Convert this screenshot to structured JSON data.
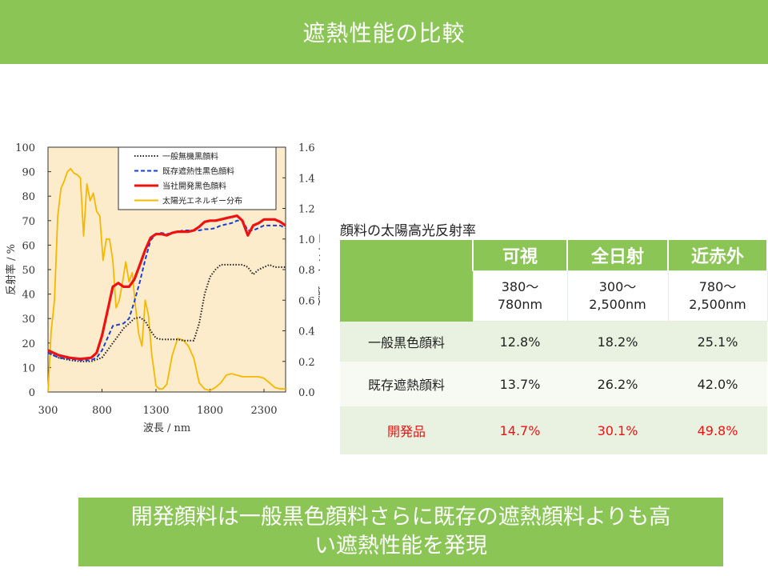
{
  "header": {
    "title": "遮熱性能の比較"
  },
  "chart_data": {
    "type": "line",
    "xlabel": "波長 / nm",
    "ylabel_left": "反射率 / %",
    "ylabel_right": "エネルギー強度",
    "xlim": [
      300,
      2500
    ],
    "xticks": [
      "300",
      "800",
      "1300",
      "1800",
      "2300"
    ],
    "ylim_left": [
      0,
      100
    ],
    "yticks_left": [
      "0",
      "10",
      "20",
      "30",
      "40",
      "50",
      "60",
      "70",
      "80",
      "90",
      "100"
    ],
    "ylim_right": [
      0,
      1.6
    ],
    "yticks_right": [
      "0.0",
      "0.2",
      "0.4",
      "0.6",
      "0.8",
      "1.0",
      "1.2",
      "1.4",
      "1.6"
    ],
    "grid": false,
    "legend_position": "top-right",
    "colors": {
      "plot_bg": "#fdeccb",
      "axis": "#333333"
    },
    "series": [
      {
        "name": "一般無機黒顔料",
        "axis": "left",
        "color": "#222222",
        "style": "dotted",
        "x": [
          300,
          400,
          500,
          600,
          700,
          800,
          850,
          900,
          950,
          1000,
          1050,
          1100,
          1150,
          1200,
          1250,
          1300,
          1350,
          1400,
          1450,
          1500,
          1550,
          1600,
          1650,
          1700,
          1750,
          1800,
          1850,
          1900,
          1950,
          2000,
          2050,
          2100,
          2150,
          2200,
          2250,
          2300,
          2350,
          2400,
          2450,
          2500
        ],
        "y": [
          16,
          14,
          13,
          12.5,
          12.5,
          14,
          17,
          20,
          23,
          26,
          28,
          30,
          30.5,
          29,
          25,
          22,
          21.5,
          21.5,
          21.5,
          21.5,
          21,
          21,
          21,
          28,
          40,
          47,
          50,
          52,
          52,
          52,
          52,
          52,
          51,
          48,
          50,
          51,
          52,
          51,
          51,
          51
        ]
      },
      {
        "name": "既存遮熱性黒色顔料",
        "axis": "left",
        "color": "#1a3fd6",
        "style": "dashed",
        "x": [
          300,
          400,
          500,
          600,
          700,
          750,
          800,
          850,
          900,
          950,
          1000,
          1050,
          1100,
          1150,
          1200,
          1250,
          1300,
          1350,
          1400,
          1450,
          1500,
          1550,
          1600,
          1650,
          1700,
          1750,
          1800,
          1850,
          1900,
          1950,
          2000,
          2050,
          2100,
          2150,
          2200,
          2250,
          2300,
          2350,
          2400,
          2450,
          2500
        ],
        "y": [
          16,
          14,
          13.5,
          13,
          13,
          14,
          17,
          22,
          27,
          27.5,
          28,
          30,
          37,
          45,
          54,
          62,
          64.5,
          65,
          64.5,
          65,
          65.5,
          66,
          66,
          66,
          66,
          66.5,
          66.5,
          67,
          68,
          68.5,
          69,
          70,
          70,
          66,
          66,
          67,
          68,
          68,
          68,
          68,
          67
        ]
      },
      {
        "name": "当社開発黒色顔料",
        "axis": "left",
        "color": "#ee1111",
        "style": "solid",
        "x": [
          300,
          400,
          500,
          600,
          700,
          750,
          800,
          850,
          900,
          950,
          1000,
          1050,
          1100,
          1150,
          1200,
          1250,
          1300,
          1350,
          1400,
          1450,
          1500,
          1550,
          1600,
          1650,
          1700,
          1750,
          1800,
          1850,
          1900,
          1950,
          2000,
          2050,
          2100,
          2150,
          2200,
          2250,
          2300,
          2350,
          2400,
          2450,
          2500
        ],
        "y": [
          17,
          15,
          14,
          13.5,
          14,
          16,
          23,
          33,
          43,
          44.5,
          43,
          43,
          46,
          52,
          58,
          63,
          64.5,
          64.5,
          64,
          65,
          65.5,
          65.5,
          65.5,
          66,
          67.5,
          69.5,
          70,
          70,
          70.5,
          71,
          71.5,
          72,
          70,
          64,
          68,
          69,
          70.5,
          70.5,
          70.5,
          69.5,
          68
        ]
      },
      {
        "name": "太陽光エネルギー分布",
        "axis": "right",
        "color": "#f5b800",
        "style": "solid",
        "x": [
          300,
          330,
          360,
          390,
          420,
          450,
          480,
          510,
          540,
          570,
          600,
          630,
          660,
          690,
          720,
          750,
          780,
          810,
          840,
          870,
          900,
          930,
          960,
          990,
          1020,
          1050,
          1080,
          1110,
          1140,
          1170,
          1200,
          1230,
          1260,
          1300,
          1330,
          1360,
          1400,
          1450,
          1500,
          1550,
          1600,
          1650,
          1700,
          1750,
          1800,
          1850,
          1900,
          1950,
          2000,
          2050,
          2100,
          2150,
          2200,
          2250,
          2300,
          2350,
          2400,
          2450,
          2500
        ],
        "y": [
          0,
          0.4,
          0.6,
          1.15,
          1.33,
          1.38,
          1.44,
          1.46,
          1.43,
          1.42,
          1.4,
          1.02,
          1.36,
          1.25,
          1.3,
          1.18,
          1.15,
          0.86,
          1.0,
          1.0,
          0.86,
          0.55,
          0.6,
          0.72,
          0.85,
          0.72,
          0.78,
          0.56,
          0.38,
          0.3,
          0.6,
          0.5,
          0.25,
          0.04,
          0.02,
          0.02,
          0.05,
          0.24,
          0.35,
          0.34,
          0.3,
          0.22,
          0.06,
          0.02,
          0.01,
          0.03,
          0.06,
          0.11,
          0.12,
          0.11,
          0.1,
          0.1,
          0.1,
          0.1,
          0.09,
          0.06,
          0.03,
          0.02,
          0.02
        ]
      }
    ]
  },
  "table": {
    "caption": "顔料の太陽高光反射率",
    "headers": [
      "可視",
      "全日射",
      "近赤外"
    ],
    "ranges": [
      {
        "line1": "380〜",
        "line2": "780nm"
      },
      {
        "line1": "300〜",
        "line2": "2,500nm"
      },
      {
        "line1": "780〜",
        "line2": "2,500nm"
      }
    ],
    "rows": [
      {
        "label": "一般黒色顔料",
        "values": [
          "12.8%",
          "18.2%",
          "25.1%"
        ]
      },
      {
        "label": "既存遮熱顔料",
        "values": [
          "13.7%",
          "26.2%",
          "42.0%"
        ]
      },
      {
        "label": "開発品",
        "values": [
          "14.7%",
          "30.1%",
          "49.8%"
        ]
      }
    ]
  },
  "footer": {
    "line1": "開発顔料は一般黒色顔料さらに既存の遮熱顔料よりも高",
    "line2": "い遮熱性能を発現"
  }
}
